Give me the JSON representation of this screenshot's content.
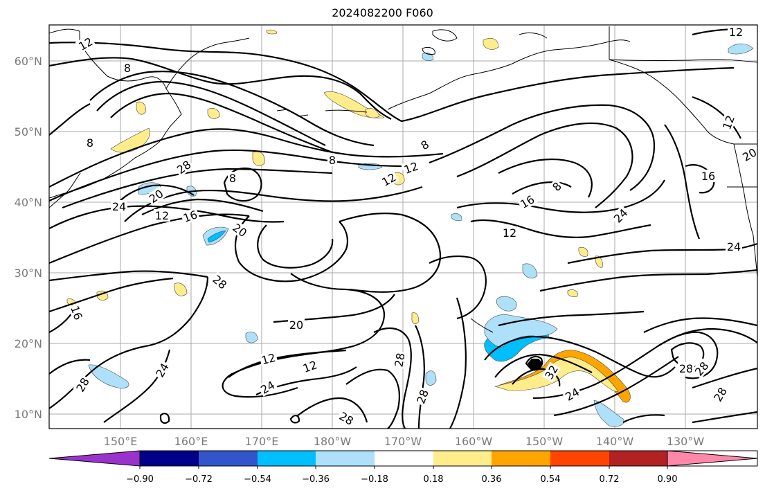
{
  "title": "2024082200 F060",
  "lon_labels": [
    "150°E",
    "160°E",
    "170°E",
    "180°W",
    "170°W",
    "160°W",
    "150°W",
    "140°W",
    "130°W"
  ],
  "lat_labels": [
    "60°N",
    "50°N",
    "40°N",
    "30°N",
    "20°N",
    "10°N"
  ],
  "colorbar": {
    "ticks": [
      "−0.90",
      "−0.72",
      "−0.54",
      "−0.36",
      "−0.18",
      "0.18",
      "0.36",
      "0.54",
      "0.72",
      "0.90"
    ],
    "colors": [
      "#9933cc",
      "#000088",
      "#3355cc",
      "#00bfff",
      "#aee0fa",
      "#ffffff",
      "#ffec8b",
      "#ffa500",
      "#ff4500",
      "#b22222",
      "#ff88aa"
    ]
  },
  "contour_labels": [
    "12",
    "8",
    "8",
    "28",
    "24",
    "20",
    "12",
    "16",
    "20",
    "8",
    "8",
    "12",
    "12",
    "8",
    "16",
    "20",
    "12",
    "12",
    "16",
    "8",
    "12",
    "24",
    "24",
    "28",
    "20",
    "16",
    "12",
    "12",
    "24",
    "28",
    "28",
    "24",
    "28",
    "28",
    "32",
    "28",
    "28",
    "24",
    "28"
  ]
}
